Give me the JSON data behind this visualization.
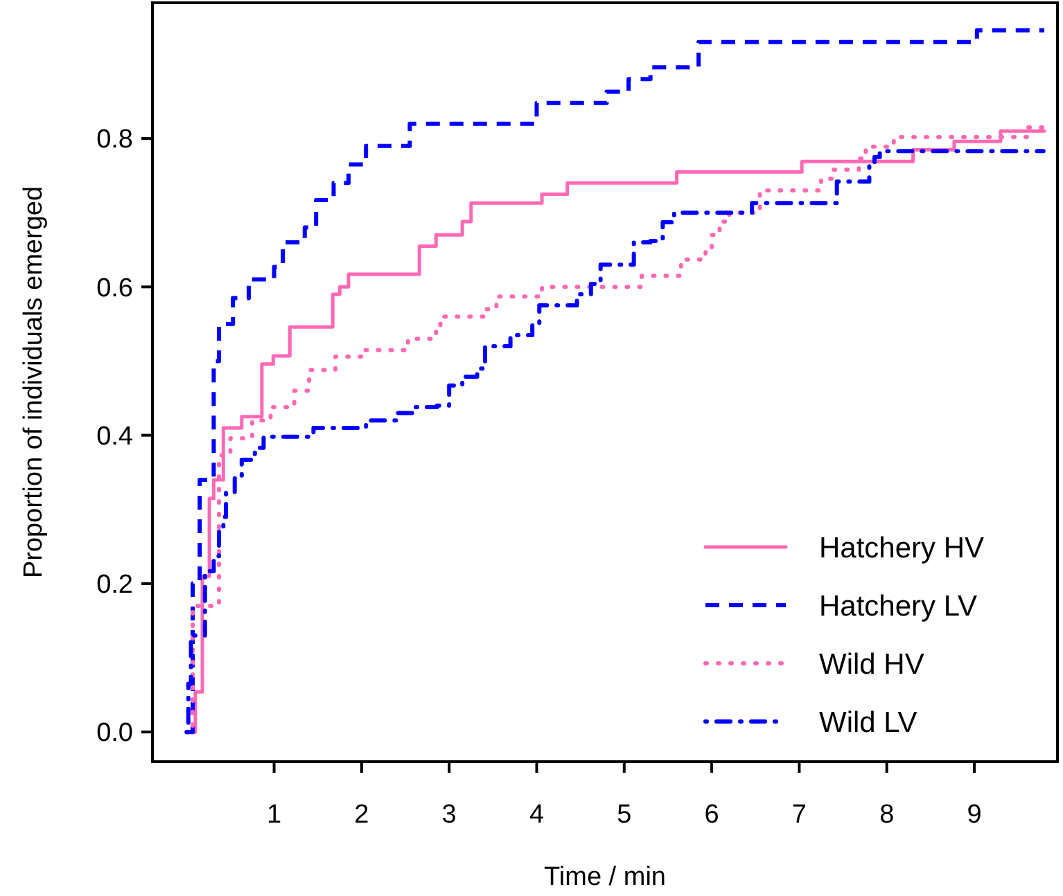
{
  "chart_data": {
    "type": "step",
    "xlabel": "Time / min",
    "ylabel": "Proportion of individuals emerged",
    "xlim": [
      -0.39,
      9.95
    ],
    "ylim": [
      -0.04,
      0.983
    ],
    "xticks": [
      1,
      2,
      3,
      4,
      5,
      6,
      7,
      8,
      9
    ],
    "yticks": [
      {
        "value": 0,
        "label": "0.0"
      },
      {
        "value": 0.2,
        "label": "0.2"
      },
      {
        "value": 0.4,
        "label": "0.4"
      },
      {
        "value": 0.6,
        "label": "0.6"
      },
      {
        "value": 0.8,
        "label": "0.8"
      }
    ],
    "grid": false,
    "legend": "bottom right",
    "marker": "none",
    "series": [
      {
        "name": "Hatchery HV",
        "color": "#ff69b4",
        "line_style": "solid",
        "x": [
          0,
          0.1,
          0.18,
          0.26,
          0.31,
          0.42,
          0.63,
          0.86,
          0.99,
          1.18,
          1.67,
          1.75,
          1.85,
          2.66,
          2.85,
          3.15,
          3.25,
          4.06,
          4.35,
          5.6,
          7.03,
          8.3,
          8.77,
          9.3,
          9.8
        ],
        "values": [
          0,
          0.054,
          0.21,
          0.315,
          0.34,
          0.41,
          0.425,
          0.496,
          0.507,
          0.546,
          0.59,
          0.6,
          0.617,
          0.655,
          0.67,
          0.688,
          0.713,
          0.725,
          0.74,
          0.755,
          0.769,
          0.785,
          0.796,
          0.81,
          0.81
        ]
      },
      {
        "name": "Hatchery LV",
        "color": "#0000ff",
        "line_style": "dashed",
        "x": [
          0,
          0.07,
          0.15,
          0.31,
          0.37,
          0.53,
          0.71,
          1.0,
          1.1,
          1.35,
          1.48,
          1.68,
          1.85,
          2.05,
          2.55,
          4.0,
          4.8,
          5.05,
          5.3,
          5.85,
          9.03,
          9.8
        ],
        "values": [
          0,
          0.2,
          0.34,
          0.5,
          0.55,
          0.585,
          0.61,
          0.627,
          0.66,
          0.68,
          0.717,
          0.74,
          0.765,
          0.79,
          0.82,
          0.848,
          0.863,
          0.88,
          0.896,
          0.93,
          0.946,
          0.946
        ]
      },
      {
        "name": "Wild HV",
        "color": "#ff69b4",
        "line_style": "dotted",
        "x": [
          0,
          0.07,
          0.37,
          0.5,
          0.75,
          0.96,
          1.23,
          1.4,
          1.7,
          2.0,
          2.53,
          2.85,
          2.9,
          3.42,
          3.54,
          4.06,
          5.2,
          5.65,
          5.93,
          6.0,
          6.09,
          6.2,
          6.55,
          7.25,
          7.38,
          7.68,
          7.76,
          8.08,
          9.6,
          9.8
        ],
        "values": [
          0,
          0.17,
          0.373,
          0.396,
          0.42,
          0.438,
          0.46,
          0.488,
          0.506,
          0.515,
          0.53,
          0.54,
          0.56,
          0.57,
          0.587,
          0.6,
          0.615,
          0.637,
          0.652,
          0.67,
          0.688,
          0.7,
          0.73,
          0.746,
          0.758,
          0.773,
          0.789,
          0.802,
          0.815,
          0.815
        ]
      },
      {
        "name": "Wild LV",
        "color": "#0000ff",
        "line_style": "dashdot",
        "x": [
          0,
          0.02,
          0.05,
          0.21,
          0.31,
          0.37,
          0.42,
          0.45,
          0.55,
          0.63,
          0.78,
          0.88,
          1.45,
          2.05,
          2.4,
          2.6,
          2.86,
          3.0,
          3.15,
          3.32,
          3.41,
          3.7,
          3.95,
          4.03,
          4.46,
          4.62,
          4.73,
          5.11,
          5.3,
          5.44,
          5.57,
          6.46,
          7.43,
          7.8,
          7.86,
          7.92,
          9.79
        ],
        "values": [
          0,
          0.065,
          0.13,
          0.217,
          0.237,
          0.27,
          0.29,
          0.323,
          0.342,
          0.367,
          0.383,
          0.398,
          0.41,
          0.42,
          0.43,
          0.438,
          0.44,
          0.467,
          0.479,
          0.49,
          0.52,
          0.535,
          0.548,
          0.575,
          0.59,
          0.604,
          0.63,
          0.66,
          0.662,
          0.687,
          0.7,
          0.713,
          0.742,
          0.767,
          0.775,
          0.783,
          0.783
        ]
      }
    ]
  }
}
